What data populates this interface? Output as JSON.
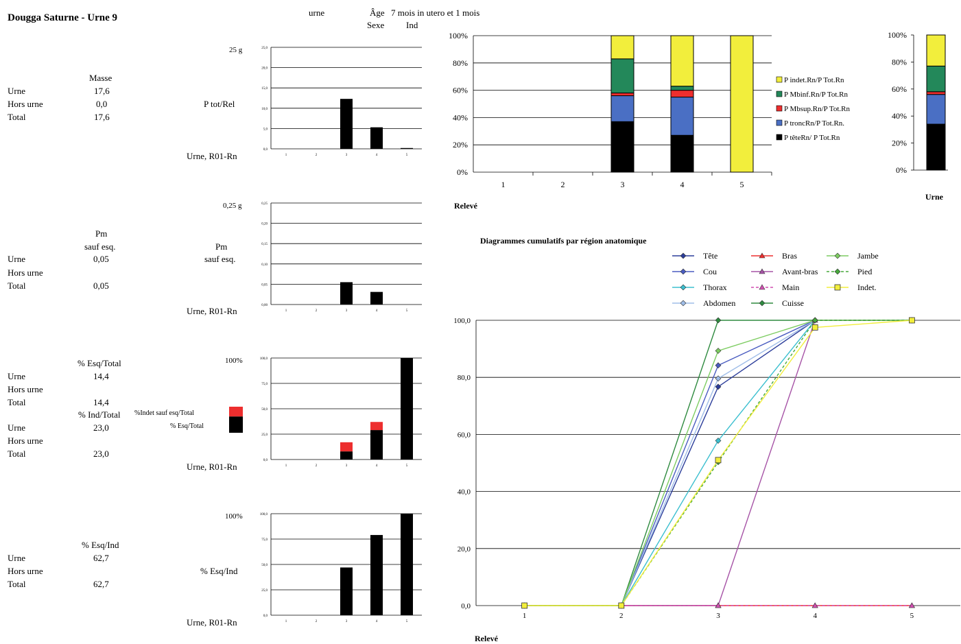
{
  "header": {
    "title": "Dougga Saturne - Urne 9",
    "urne_label": "urne",
    "age_label": "Âge",
    "age_value": "7 mois in utero et 1 mois",
    "sexe_label": "Sexe",
    "sexe_value": "Ind"
  },
  "masse": {
    "heading": "Masse",
    "rows": [
      {
        "label": "Urne",
        "value": "17,6"
      },
      {
        "label": "Hors urne",
        "value": "0,0"
      },
      {
        "label": "Total",
        "value": "17,6"
      }
    ],
    "chart_side_label": "P tot/Rel",
    "chart_top_label": "25 g",
    "chart_bottom_label": "Urne, R01-Rn"
  },
  "pm": {
    "heading1": "Pm",
    "heading2": "sauf esq.",
    "rows": [
      {
        "label": "Urne",
        "value": "0,05"
      },
      {
        "label": "Hors urne",
        "value": ""
      },
      {
        "label": "Total",
        "value": "0,05"
      }
    ],
    "chart_side_label1": "Pm",
    "chart_side_label2": "sauf esq.",
    "chart_top_label": "0,25 g",
    "chart_bottom_label": "Urne, R01-Rn"
  },
  "esq_total": {
    "heading": "% Esq/Total",
    "rows": [
      {
        "label": "Urne",
        "value": "14,4"
      },
      {
        "label": "Hors urne",
        "value": ""
      },
      {
        "label": "Total",
        "value": "14,4"
      }
    ],
    "heading_ind": "% Ind/Total",
    "rows_ind": [
      {
        "label": "Urne",
        "value": "23,0"
      },
      {
        "label": "Hors urne",
        "value": ""
      },
      {
        "label": "Total",
        "value": "23,0"
      }
    ],
    "legend_indet": "%Indet sauf esq/Total",
    "legend_esq": "% Esq/Total",
    "chart_top_label": "100%",
    "chart_bottom_label": "Urne, R01-Rn",
    "colors": {
      "esq": "#000000",
      "indet": "#ed2e2e"
    }
  },
  "esq_ind": {
    "heading": "% Esq/Ind",
    "rows": [
      {
        "label": "Urne",
        "value": "62,7"
      },
      {
        "label": "Hors urne",
        "value": ""
      },
      {
        "label": "Total",
        "value": "62,7"
      }
    ],
    "chart_side_label": "% Esq/Ind",
    "chart_top_label": "100%",
    "chart_bottom_label": "Urne, R01-Rn"
  },
  "stacked": {
    "xlabel": "Relevé",
    "urne_label": "Urne"
  },
  "cumul": {
    "title": "Diagrammes cumulatifs par région anatomique",
    "xlabel": "Relevé"
  },
  "chart_data": [
    {
      "type": "bar",
      "categories": [
        "1",
        "2",
        "3",
        "4",
        "5"
      ],
      "values": [
        0,
        0,
        12.3,
        5.3,
        0.2
      ],
      "ylim": [
        0,
        25
      ],
      "yticks": [
        "0,0",
        "5,0",
        "10,0",
        "15,0",
        "20,0",
        "25,0"
      ],
      "color": "#000000"
    },
    {
      "type": "bar",
      "categories": [
        "1",
        "2",
        "3",
        "4",
        "5"
      ],
      "values": [
        0,
        0,
        0.055,
        0.031,
        0
      ],
      "ylim": [
        0,
        0.25
      ],
      "yticks": [
        "0,00",
        "0,05",
        "0,10",
        "0,15",
        "0,20",
        "0,25"
      ],
      "color": "#000000"
    },
    {
      "type": "bar",
      "stacked": true,
      "categories": [
        "1",
        "2",
        "3",
        "4",
        "5"
      ],
      "series": [
        {
          "values": [
            0,
            0,
            8,
            29,
            100
          ],
          "color": "#000000"
        },
        {
          "values": [
            0,
            0,
            9,
            8,
            0
          ],
          "color": "#ed2e2e"
        }
      ],
      "ylim": [
        0,
        100
      ],
      "yticks": [
        "0,0",
        "25,0",
        "50,0",
        "75,0",
        "100,0"
      ],
      "side_bar": {
        "esq": 14.4,
        "indet": 8.6
      }
    },
    {
      "type": "bar",
      "categories": [
        "1",
        "2",
        "3",
        "4",
        "5"
      ],
      "values": [
        0,
        0,
        47,
        79,
        100
      ],
      "ylim": [
        0,
        100
      ],
      "yticks": [
        "0,0",
        "25,0",
        "50,0",
        "75,0",
        "100,0"
      ],
      "color": "#000000"
    },
    {
      "type": "bar",
      "stacked": true,
      "categories": [
        "1",
        "2",
        "3",
        "4",
        "5"
      ],
      "yticks": [
        "0%",
        "20%",
        "40%",
        "60%",
        "80%",
        "100%"
      ],
      "xlabel": "Relevé",
      "series": [
        {
          "name": "P têteRn/ P Tot.Rn",
          "color": "#000000",
          "values": [
            0,
            0,
            37,
            27,
            0
          ]
        },
        {
          "name": "P troncRn/P Tot.Rn.",
          "color": "#4a6fc4",
          "values": [
            0,
            0,
            19,
            28,
            0
          ]
        },
        {
          "name": "P Mbsup.Rn/P Tot.Rn",
          "color": "#ed2e2e",
          "values": [
            0,
            0,
            2,
            5,
            0
          ]
        },
        {
          "name": "P Mbinf.Rn/P Tot.Rn",
          "color": "#23885a",
          "values": [
            0,
            0,
            25,
            3,
            0
          ]
        },
        {
          "name": "P indet.Rn/P Tot.Rn",
          "color": "#f2ee3c",
          "values": [
            0,
            0,
            17,
            37,
            100
          ]
        }
      ]
    },
    {
      "type": "bar",
      "stacked": true,
      "categories": [
        "Urne"
      ],
      "yticks": [
        "0%",
        "20%",
        "40%",
        "60%",
        "80%",
        "100%"
      ],
      "series": [
        {
          "color": "#000000",
          "values": [
            34
          ]
        },
        {
          "color": "#4a6fc4",
          "values": [
            22
          ]
        },
        {
          "color": "#ed2e2e",
          "values": [
            2
          ]
        },
        {
          "color": "#23885a",
          "values": [
            19
          ]
        },
        {
          "color": "#f2ee3c",
          "values": [
            23
          ]
        }
      ]
    },
    {
      "type": "line",
      "title": "Diagrammes cumulatifs par région anatomique",
      "x": [
        "1",
        "2",
        "3",
        "4",
        "5"
      ],
      "ylim": [
        0,
        100
      ],
      "yticks": [
        "0,0",
        "20,0",
        "40,0",
        "60,0",
        "80,0",
        "100,0"
      ],
      "xlabel": "Relevé",
      "series": [
        {
          "name": "Tête",
          "color": "#2b3d9a",
          "marker": "diamond",
          "values": [
            0,
            0,
            76.7,
            100,
            100
          ]
        },
        {
          "name": "Cou",
          "color": "#4a5cc0",
          "marker": "diamond",
          "values": [
            0,
            0,
            84.2,
            100,
            100
          ]
        },
        {
          "name": "Thorax",
          "color": "#3bbfcf",
          "marker": "diamond",
          "values": [
            0,
            0,
            57.8,
            100,
            100
          ]
        },
        {
          "name": "Abdomen",
          "color": "#9fbde8",
          "marker": "diamond",
          "values": [
            0,
            0,
            79.6,
            100,
            100
          ]
        },
        {
          "name": "Bras",
          "color": "#ed2e2e",
          "marker": "triangle",
          "values": [
            0,
            0,
            0,
            0,
            0
          ]
        },
        {
          "name": "Avant-bras",
          "color": "#a653a6",
          "marker": "triangle",
          "values": [
            0,
            0,
            0,
            100,
            100
          ]
        },
        {
          "name": "Main",
          "color": "#d04fb0",
          "marker": "triangle",
          "dash": true,
          "values": [
            0,
            0,
            0,
            0,
            0
          ]
        },
        {
          "name": "Cuisse",
          "color": "#2e8a3f",
          "marker": "diamond",
          "values": [
            0,
            0,
            100,
            100,
            100
          ]
        },
        {
          "name": "Jambe",
          "color": "#7ccc60",
          "marker": "diamond",
          "values": [
            0,
            0,
            89.3,
            100,
            100
          ]
        },
        {
          "name": "Pied",
          "color": "#46a83c",
          "marker": "diamond",
          "dash": true,
          "values": [
            0,
            0,
            50.3,
            100,
            100
          ]
        },
        {
          "name": "Indet.",
          "color": "#f2ee3c",
          "marker": "square",
          "values": [
            0,
            0,
            51.0,
            97.5,
            100
          ]
        }
      ]
    }
  ]
}
